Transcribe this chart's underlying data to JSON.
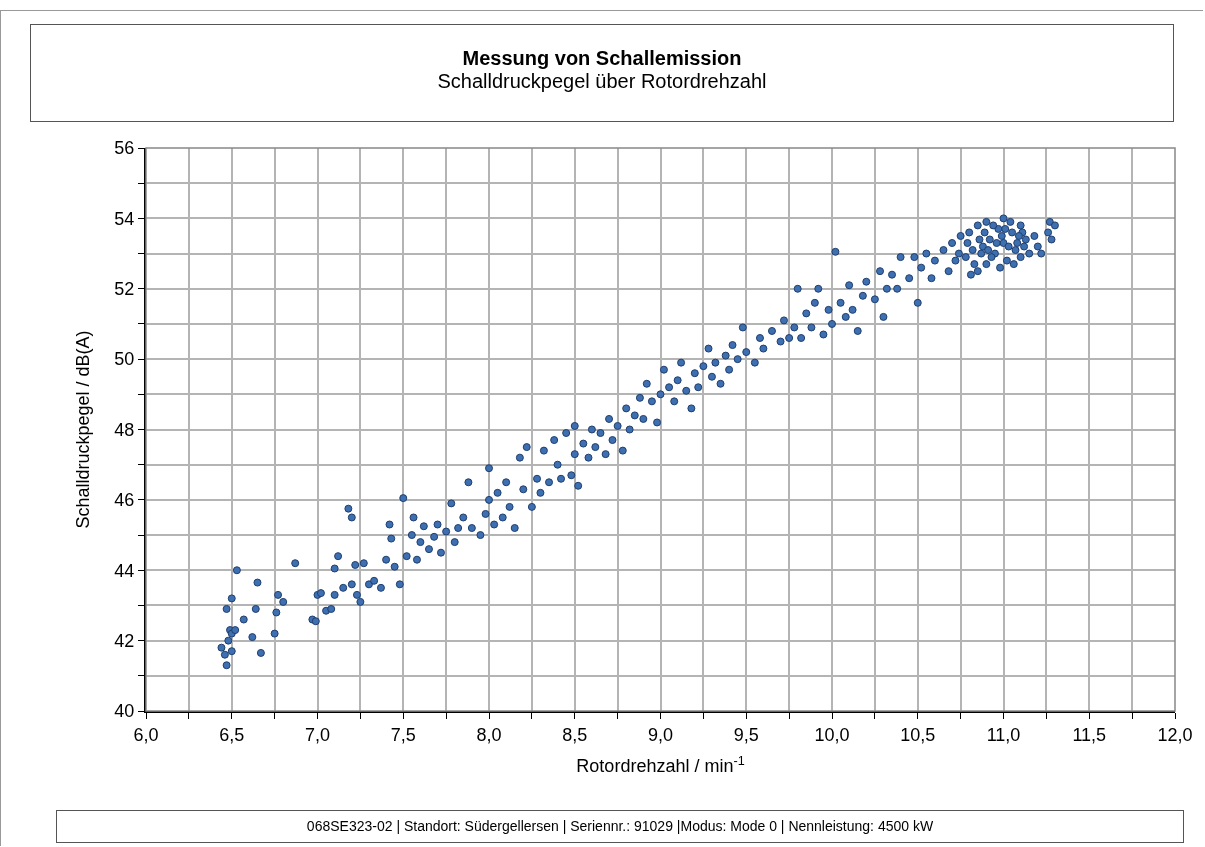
{
  "chart_data": {
    "type": "scatter",
    "title": "Messung von Schallemission",
    "subtitle": "Schalldruckpegel über Rotordrehzahl",
    "xlabel": "Rotordrehzahl / min$^{-1}$",
    "ylabel": "Schalldruckpegel / dB(A)",
    "annotations": [
      "068SE323-02 | Standort: Südergellersen | Seriennr.: 91029 |Modus: Mode 0 | Nennleistung: 4500 kW"
    ],
    "xlim": [
      6,
      12
    ],
    "ylim": [
      40,
      56
    ],
    "xticks": [
      {
        "value": 6,
        "label": "6,0"
      },
      {
        "value": 6.25,
        "label": null
      },
      {
        "value": 6.5,
        "label": "6,5"
      },
      {
        "value": 6.75,
        "label": null
      },
      {
        "value": 7,
        "label": "7,0"
      },
      {
        "value": 7.25,
        "label": null
      },
      {
        "value": 7.5,
        "label": "7,5"
      },
      {
        "value": 7.75,
        "label": null
      },
      {
        "value": 8,
        "label": "8,0"
      },
      {
        "value": 8.25,
        "label": null
      },
      {
        "value": 8.5,
        "label": "8,5"
      },
      {
        "value": 8.75,
        "label": null
      },
      {
        "value": 9,
        "label": "9,0"
      },
      {
        "value": 9.25,
        "label": null
      },
      {
        "value": 9.5,
        "label": "9,5"
      },
      {
        "value": 9.75,
        "label": null
      },
      {
        "value": 10,
        "label": "10,0"
      },
      {
        "value": 10.25,
        "label": null
      },
      {
        "value": 10.5,
        "label": "10,5"
      },
      {
        "value": 10.75,
        "label": null
      },
      {
        "value": 11,
        "label": "11,0"
      },
      {
        "value": 11.25,
        "label": null
      },
      {
        "value": 11.5,
        "label": "11,5"
      },
      {
        "value": 11.75,
        "label": null
      },
      {
        "value": 12,
        "label": "12,0"
      }
    ],
    "yticks": [
      40,
      {
        "value": 41,
        "label": null
      },
      42,
      {
        "value": 43,
        "label": null
      },
      44,
      {
        "value": 45,
        "label": null
      },
      46,
      {
        "value": 47,
        "label": null
      },
      48,
      {
        "value": 49,
        "label": null
      },
      50,
      {
        "value": 51,
        "label": null
      },
      52,
      {
        "value": 53,
        "label": null
      },
      54,
      {
        "value": 55,
        "label": null
      },
      56
    ],
    "grid": true,
    "marker": "circle",
    "series": [
      {
        "color": "#3e6fb0",
        "x": [
          6.44,
          6.46,
          6.47,
          6.48,
          6.49,
          6.5,
          6.5,
          6.52,
          6.47,
          6.5,
          6.53,
          6.57,
          6.62,
          6.64,
          6.65,
          6.67,
          6.75,
          6.76,
          6.77,
          6.8,
          6.87,
          6.97,
          6.99,
          7.0,
          7.02,
          7.05,
          7.08,
          7.1,
          7.1,
          7.12,
          7.15,
          7.18,
          7.2,
          7.2,
          7.22,
          7.23,
          7.25,
          7.27,
          7.3,
          7.33,
          7.37,
          7.4,
          7.42,
          7.43,
          7.45,
          7.48,
          7.5,
          7.52,
          7.55,
          7.56,
          7.58,
          7.6,
          7.62,
          7.65,
          7.68,
          7.7,
          7.72,
          7.75,
          7.78,
          7.8,
          7.82,
          7.85,
          7.88,
          7.9,
          7.95,
          7.98,
          8.0,
          8.0,
          8.03,
          8.05,
          8.08,
          8.1,
          8.12,
          8.15,
          8.18,
          8.2,
          8.22,
          8.25,
          8.28,
          8.3,
          8.32,
          8.35,
          8.38,
          8.4,
          8.42,
          8.45,
          8.48,
          8.5,
          8.5,
          8.52,
          8.55,
          8.58,
          8.6,
          8.62,
          8.65,
          8.68,
          8.7,
          8.72,
          8.75,
          8.78,
          8.8,
          8.82,
          8.85,
          8.88,
          8.9,
          8.92,
          8.95,
          8.98,
          9.0,
          9.02,
          9.05,
          9.08,
          9.1,
          9.12,
          9.15,
          9.18,
          9.2,
          9.22,
          9.25,
          9.28,
          9.3,
          9.32,
          9.35,
          9.38,
          9.4,
          9.42,
          9.45,
          9.48,
          9.5,
          9.55,
          9.58,
          9.6,
          9.65,
          9.7,
          9.72,
          9.75,
          9.78,
          9.8,
          9.82,
          9.85,
          9.88,
          9.9,
          9.92,
          9.95,
          9.98,
          10.0,
          10.02,
          10.05,
          10.08,
          10.1,
          10.12,
          10.15,
          10.18,
          10.2,
          10.25,
          10.28,
          10.3,
          10.32,
          10.35,
          10.38,
          10.4,
          10.45,
          10.48,
          10.5,
          10.52,
          10.55,
          10.58,
          10.6,
          10.65,
          10.68,
          10.7,
          10.72,
          10.75,
          10.78,
          10.8,
          10.82,
          10.85,
          10.85,
          10.88,
          10.9,
          10.9,
          10.92,
          10.95,
          10.97,
          10.98,
          11.0,
          11.0,
          11.02,
          11.05,
          11.07,
          11.1,
          11.1,
          11.13,
          11.15,
          11.18,
          11.2,
          11.22,
          11.26,
          11.27,
          11.28,
          11.3,
          10.74,
          10.79,
          10.83,
          10.86,
          10.89,
          10.91,
          10.93,
          10.96,
          10.99,
          11.01,
          11.03,
          11.04,
          11.06,
          11.08,
          11.11,
          11.12,
          10.81,
          10.87,
          10.94,
          11.09
        ],
        "values": [
          41.8,
          41.6,
          41.3,
          42.0,
          42.3,
          41.7,
          42.2,
          42.3,
          42.9,
          43.2,
          44.0,
          42.6,
          42.1,
          42.9,
          43.65,
          41.65,
          42.2,
          42.8,
          43.3,
          43.1,
          44.2,
          42.6,
          42.55,
          43.3,
          43.35,
          42.85,
          42.9,
          43.3,
          44.05,
          44.4,
          43.5,
          45.75,
          45.5,
          43.6,
          44.15,
          43.3,
          43.1,
          44.2,
          43.6,
          43.7,
          43.5,
          44.3,
          45.3,
          44.9,
          44.1,
          43.6,
          46.05,
          44.4,
          45.0,
          45.5,
          44.3,
          44.8,
          45.25,
          44.6,
          44.95,
          45.3,
          44.5,
          45.1,
          45.9,
          44.8,
          45.2,
          45.5,
          46.5,
          45.2,
          45.0,
          45.6,
          46.0,
          46.9,
          45.3,
          46.2,
          45.5,
          46.5,
          45.8,
          45.2,
          47.2,
          46.3,
          47.5,
          45.8,
          46.6,
          46.2,
          47.4,
          46.5,
          47.7,
          47.0,
          46.6,
          47.9,
          46.7,
          47.3,
          48.1,
          46.4,
          47.6,
          47.2,
          48.0,
          47.5,
          47.9,
          47.3,
          48.3,
          47.7,
          48.1,
          47.4,
          48.6,
          48.0,
          48.4,
          48.9,
          48.3,
          49.3,
          48.8,
          48.2,
          49.0,
          49.7,
          49.2,
          48.8,
          49.4,
          49.9,
          49.1,
          48.6,
          49.6,
          49.2,
          49.8,
          50.3,
          49.5,
          49.9,
          49.3,
          50.1,
          49.7,
          50.4,
          50.0,
          50.9,
          50.2,
          49.9,
          50.6,
          50.3,
          50.8,
          50.5,
          51.1,
          50.6,
          50.9,
          52.0,
          50.6,
          51.3,
          50.9,
          51.6,
          52.0,
          50.7,
          51.4,
          51.0,
          53.05,
          51.6,
          51.2,
          52.1,
          51.4,
          50.8,
          51.8,
          52.2,
          51.7,
          52.5,
          51.2,
          52.0,
          52.4,
          52.0,
          52.9,
          52.3,
          52.9,
          51.6,
          52.6,
          53.0,
          52.3,
          52.8,
          53.1,
          52.5,
          53.3,
          52.8,
          53.5,
          52.9,
          53.6,
          53.1,
          53.8,
          52.5,
          53.2,
          53.9,
          52.7,
          53.4,
          53.0,
          53.7,
          52.6,
          54.0,
          53.3,
          52.8,
          53.6,
          53.1,
          53.8,
          52.9,
          53.4,
          53.0,
          53.5,
          53.2,
          53.0,
          53.6,
          53.9,
          53.4,
          53.8,
          53.0,
          53.3,
          52.7,
          53.4,
          53.6,
          53.1,
          52.9,
          53.3,
          53.5,
          53.7,
          53.2,
          53.9,
          52.7,
          53.3,
          53.6,
          53.2,
          52.4,
          53.0,
          53.8,
          53.5
        ]
      }
    ]
  }
}
